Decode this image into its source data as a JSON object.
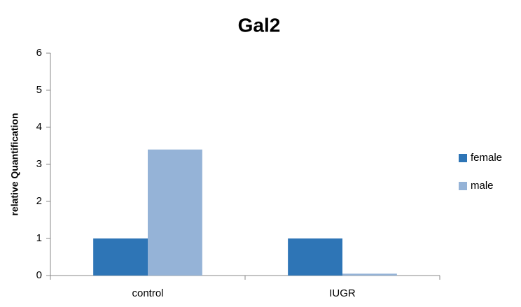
{
  "chart_data": {
    "type": "bar",
    "title": "Gal2",
    "y_label": "relative Quantification",
    "categories": [
      "control",
      "IUGR"
    ],
    "series": [
      {
        "name": "female",
        "color": "#2e75b6",
        "values": [
          1,
          1
        ]
      },
      {
        "name": "male",
        "color": "#95b3d7",
        "values": [
          3.4,
          0.05
        ]
      }
    ],
    "ylim": [
      0,
      6
    ],
    "yticks": [
      0,
      1,
      2,
      3,
      4,
      5,
      6
    ],
    "grid": false,
    "legend": "right"
  }
}
